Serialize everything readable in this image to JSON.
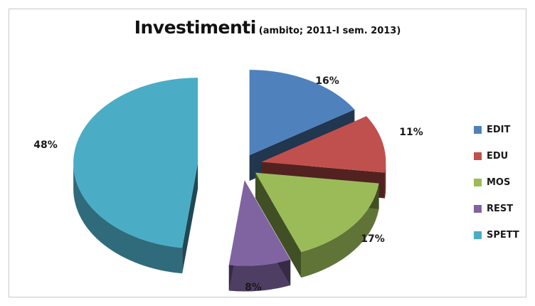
{
  "chart_data": {
    "type": "pie",
    "title": "Investimenti",
    "subtitle": "(ambito; 2011-I sem. 2013)",
    "slices": [
      {
        "label": "EDIT",
        "value": 16,
        "display": "16%",
        "color": "#4f81bd"
      },
      {
        "label": "EDU",
        "value": 11,
        "display": "11%",
        "color": "#c0504d"
      },
      {
        "label": "MOS",
        "value": 17,
        "display": "17%",
        "color": "#9bbb59"
      },
      {
        "label": "REST",
        "value": 8,
        "display": "8%",
        "color": "#8064a2"
      },
      {
        "label": "SPETT",
        "value": 48,
        "display": "48%",
        "color": "#4bacc6"
      }
    ],
    "style": "3d-exploded",
    "legend": "right"
  }
}
